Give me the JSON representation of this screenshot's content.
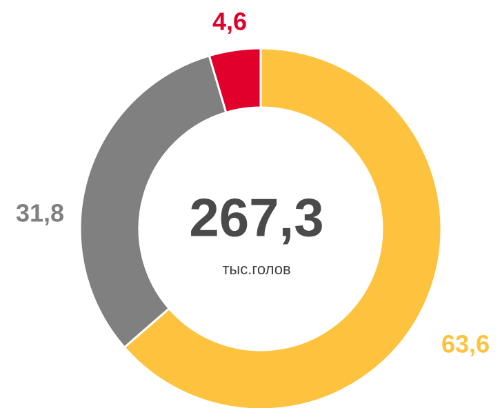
{
  "chart_data": {
    "type": "donut",
    "values": [
      63.6,
      31.8,
      4.6
    ],
    "value_labels": [
      "63,6",
      "31,8",
      "4,6"
    ],
    "colors": [
      "#fdc33f",
      "#808080",
      "#e0002b"
    ],
    "center_text": "267,3",
    "center_subtext": "тыс.голов"
  }
}
